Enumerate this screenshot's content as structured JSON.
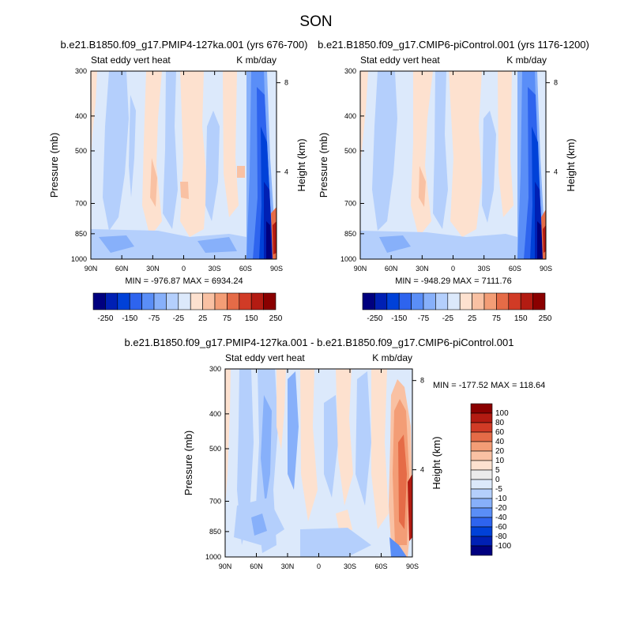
{
  "figure": {
    "title": "SON"
  },
  "colors": {
    "abs_scale": [
      "#00007f",
      "#0020b4",
      "#0041d8",
      "#2e64ee",
      "#5a8ef7",
      "#87b0fa",
      "#b4cffc",
      "#dce9fb",
      "#fde1cf",
      "#f9c1a3",
      "#f39d76",
      "#e56b47",
      "#d13b26",
      "#b31b12",
      "#8a0000"
    ],
    "diff_scale": [
      "#00007f",
      "#0020b4",
      "#0041d8",
      "#2e64ee",
      "#5a8ef7",
      "#87b0fa",
      "#b4cffc",
      "#dce9fb",
      "#ebebeb",
      "#fde1cf",
      "#f9c1a3",
      "#f39d76",
      "#e56b47",
      "#d13b26",
      "#b31b12",
      "#8a0000"
    ]
  },
  "chart_data": [
    {
      "type": "heatmap",
      "title": "b.e21.B1850.f09_g17.PMIP4-127ka.001 (yrs 676-700)",
      "left_label": "Stat eddy vert heat",
      "right_label": "K mb/day",
      "xlabel": "",
      "ylabel": "Pressure (mb)",
      "y2label": "Height (km)",
      "x_ticks": [
        "90N",
        "60N",
        "30N",
        "0",
        "30S",
        "60S",
        "90S"
      ],
      "y_ticks": [
        300,
        400,
        500,
        700,
        850,
        1000
      ],
      "y2_ticks": [
        8,
        4
      ],
      "ylim": [
        1000,
        300
      ],
      "stats": "MIN = -976.87  MAX = 6934.24",
      "colorbar_labels": [
        "-250",
        "-150",
        "-75",
        "-25",
        "25",
        "75",
        "150",
        "250"
      ]
    },
    {
      "type": "heatmap",
      "title": "b.e21.B1850.f09_g17.CMIP6-piControl.001 (yrs 1176-1200)",
      "left_label": "Stat eddy vert heat",
      "right_label": "K mb/day",
      "xlabel": "",
      "ylabel": "Pressure (mb)",
      "y2label": "Height (km)",
      "x_ticks": [
        "90N",
        "60N",
        "30N",
        "0",
        "30S",
        "60S",
        "90S"
      ],
      "y_ticks": [
        300,
        400,
        500,
        700,
        850,
        1000
      ],
      "y2_ticks": [
        8,
        4
      ],
      "ylim": [
        1000,
        300
      ],
      "stats": "MIN = -948.29  MAX = 7111.76",
      "colorbar_labels": [
        "-250",
        "-150",
        "-75",
        "-25",
        "25",
        "75",
        "150",
        "250"
      ]
    },
    {
      "type": "heatmap",
      "title": "b.e21.B1850.f09_g17.PMIP4-127ka.001 - b.e21.B1850.f09_g17.CMIP6-piControl.001",
      "left_label": "Stat eddy vert heat",
      "right_label": "K mb/day",
      "xlabel": "",
      "ylabel": "Pressure (mb)",
      "y2label": "Height (km)",
      "x_ticks": [
        "90N",
        "60N",
        "30N",
        "0",
        "30S",
        "60S",
        "90S"
      ],
      "y_ticks": [
        300,
        400,
        500,
        700,
        850,
        1000
      ],
      "y2_ticks": [
        8,
        4
      ],
      "ylim": [
        1000,
        300
      ],
      "stats": "MIN = -177.52  MAX = 118.64",
      "colorbar_labels": [
        "100",
        "80",
        "60",
        "40",
        "20",
        "10",
        "5",
        "0",
        "-5",
        "-10",
        "-20",
        "-40",
        "-60",
        "-80",
        "-100"
      ]
    }
  ]
}
